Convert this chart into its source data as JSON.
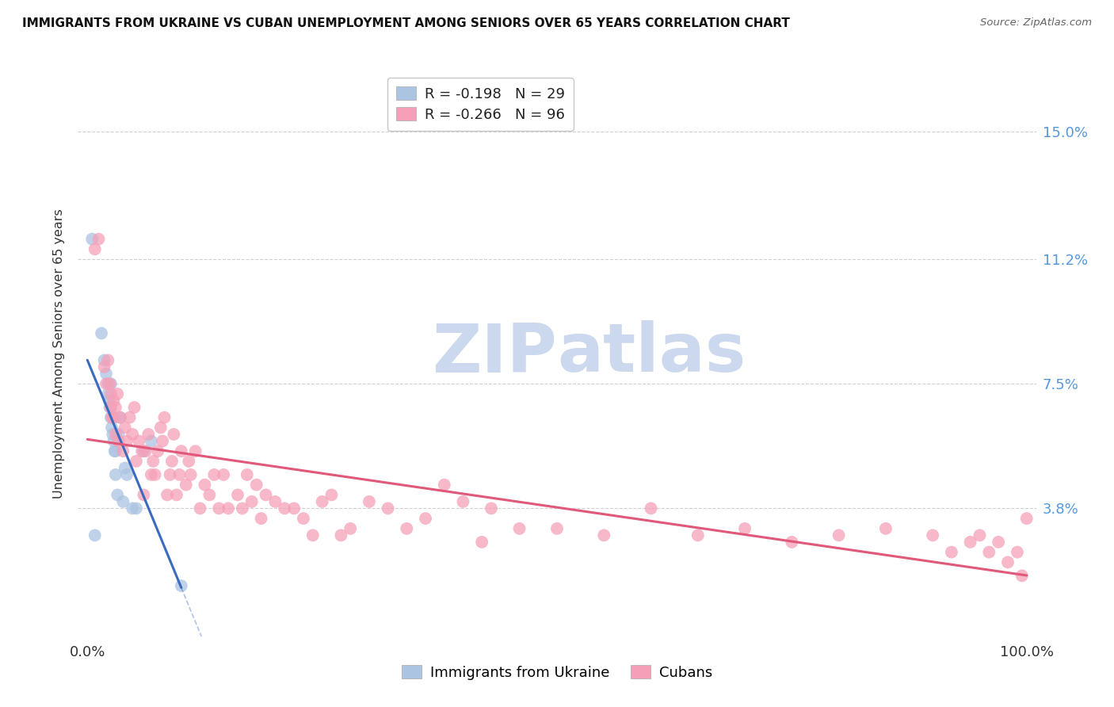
{
  "title": "IMMIGRANTS FROM UKRAINE VS CUBAN UNEMPLOYMENT AMONG SENIORS OVER 65 YEARS CORRELATION CHART",
  "source": "Source: ZipAtlas.com",
  "ylabel": "Unemployment Among Seniors over 65 years",
  "ytick_labels": [
    "3.8%",
    "7.5%",
    "11.2%",
    "15.0%"
  ],
  "ytick_values": [
    0.038,
    0.075,
    0.112,
    0.15
  ],
  "legend_ukraine_r": "-0.198",
  "legend_ukraine_n": "29",
  "legend_cuban_r": "-0.266",
  "legend_cuban_n": "96",
  "ukraine_color": "#aac4e2",
  "cuban_color": "#f5a0b8",
  "ukraine_line_color": "#3a6bbf",
  "cuban_line_color": "#e0587a",
  "ukraine_dots_x": [
    0.005,
    0.008,
    0.015,
    0.018,
    0.02,
    0.022,
    0.022,
    0.023,
    0.024,
    0.025,
    0.025,
    0.026,
    0.027,
    0.028,
    0.028,
    0.029,
    0.03,
    0.03,
    0.032,
    0.033,
    0.035,
    0.038,
    0.04,
    0.042,
    0.048,
    0.052,
    0.06,
    0.068,
    0.1
  ],
  "ukraine_dots_y": [
    0.118,
    0.03,
    0.09,
    0.082,
    0.078,
    0.075,
    0.072,
    0.07,
    0.068,
    0.075,
    0.065,
    0.062,
    0.06,
    0.065,
    0.058,
    0.055,
    0.055,
    0.048,
    0.042,
    0.06,
    0.065,
    0.04,
    0.05,
    0.048,
    0.038,
    0.038,
    0.055,
    0.058,
    0.015
  ],
  "cuban_dots_x": [
    0.008,
    0.012,
    0.018,
    0.02,
    0.022,
    0.024,
    0.025,
    0.025,
    0.026,
    0.028,
    0.028,
    0.03,
    0.03,
    0.032,
    0.033,
    0.035,
    0.038,
    0.04,
    0.042,
    0.045,
    0.048,
    0.05,
    0.052,
    0.055,
    0.058,
    0.06,
    0.062,
    0.065,
    0.068,
    0.07,
    0.072,
    0.075,
    0.078,
    0.08,
    0.082,
    0.085,
    0.088,
    0.09,
    0.092,
    0.095,
    0.098,
    0.1,
    0.105,
    0.108,
    0.11,
    0.115,
    0.12,
    0.125,
    0.13,
    0.135,
    0.14,
    0.145,
    0.15,
    0.16,
    0.165,
    0.17,
    0.175,
    0.18,
    0.185,
    0.19,
    0.2,
    0.21,
    0.22,
    0.23,
    0.24,
    0.25,
    0.26,
    0.27,
    0.28,
    0.3,
    0.32,
    0.34,
    0.36,
    0.4,
    0.43,
    0.46,
    0.5,
    0.55,
    0.6,
    0.65,
    0.7,
    0.75,
    0.8,
    0.85,
    0.9,
    0.92,
    0.94,
    0.95,
    0.96,
    0.97,
    0.98,
    0.99,
    0.995,
    1.0,
    0.38,
    0.42
  ],
  "cuban_dots_y": [
    0.115,
    0.118,
    0.08,
    0.075,
    0.082,
    0.075,
    0.072,
    0.068,
    0.065,
    0.07,
    0.065,
    0.06,
    0.068,
    0.072,
    0.058,
    0.065,
    0.055,
    0.062,
    0.058,
    0.065,
    0.06,
    0.068,
    0.052,
    0.058,
    0.055,
    0.042,
    0.055,
    0.06,
    0.048,
    0.052,
    0.048,
    0.055,
    0.062,
    0.058,
    0.065,
    0.042,
    0.048,
    0.052,
    0.06,
    0.042,
    0.048,
    0.055,
    0.045,
    0.052,
    0.048,
    0.055,
    0.038,
    0.045,
    0.042,
    0.048,
    0.038,
    0.048,
    0.038,
    0.042,
    0.038,
    0.048,
    0.04,
    0.045,
    0.035,
    0.042,
    0.04,
    0.038,
    0.038,
    0.035,
    0.03,
    0.04,
    0.042,
    0.03,
    0.032,
    0.04,
    0.038,
    0.032,
    0.035,
    0.04,
    0.038,
    0.032,
    0.032,
    0.03,
    0.038,
    0.03,
    0.032,
    0.028,
    0.03,
    0.032,
    0.03,
    0.025,
    0.028,
    0.03,
    0.025,
    0.028,
    0.022,
    0.025,
    0.018,
    0.035,
    0.045,
    0.028
  ],
  "xlim": [
    -0.01,
    1.01
  ],
  "ylim": [
    0.0,
    0.168
  ],
  "background_color": "#ffffff",
  "grid_color": "#d0d0d0",
  "watermark_zip": "ZIP",
  "watermark_atlas": "atlas",
  "watermark_color": "#ccd8ee"
}
